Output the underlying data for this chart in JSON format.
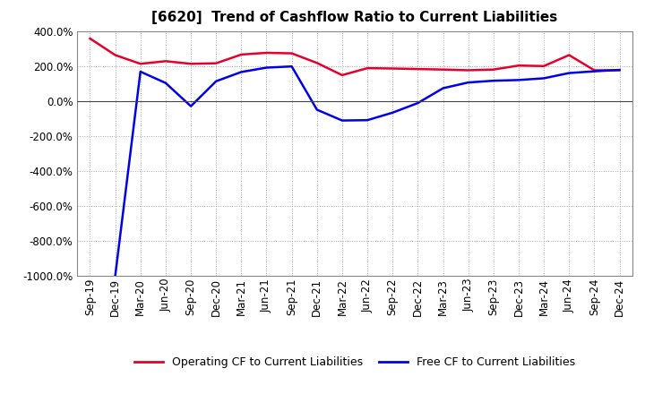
{
  "title": "[6620]  Trend of Cashflow Ratio to Current Liabilities",
  "x_labels": [
    "Sep-19",
    "Dec-19",
    "Mar-20",
    "Jun-20",
    "Sep-20",
    "Dec-20",
    "Mar-21",
    "Jun-21",
    "Sep-21",
    "Dec-21",
    "Mar-22",
    "Jun-22",
    "Sep-22",
    "Dec-22",
    "Mar-23",
    "Jun-23",
    "Sep-23",
    "Dec-23",
    "Mar-24",
    "Jun-24",
    "Sep-24",
    "Dec-24"
  ],
  "operating_cf": [
    360,
    265,
    215,
    230,
    215,
    218,
    268,
    278,
    275,
    220,
    150,
    190,
    188,
    185,
    182,
    178,
    182,
    205,
    202,
    265,
    178,
    178
  ],
  "free_cf": [
    null,
    -1000,
    170,
    105,
    -28,
    115,
    168,
    193,
    200,
    -48,
    -110,
    -108,
    -65,
    -10,
    75,
    108,
    118,
    122,
    132,
    162,
    172,
    180
  ],
  "operating_color": "#e8002d",
  "free_color": "#0000e8",
  "ylim": [
    -1000,
    400
  ],
  "yticks": [
    -1000,
    -800,
    -600,
    -400,
    -200,
    0,
    200,
    400
  ],
  "background_color": "#ffffff",
  "grid_color": "#aaaaaa",
  "legend_labels": [
    "Operating CF to Current Liabilities",
    "Free CF to Current Liabilities"
  ],
  "title_fontsize": 11,
  "tick_fontsize": 8.5,
  "ytick_fontsize": 8.5
}
